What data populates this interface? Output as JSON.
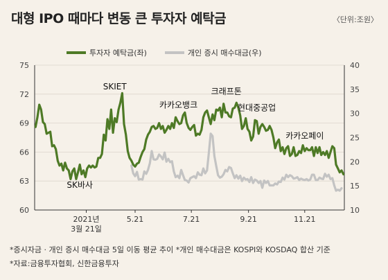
{
  "title": "대형 IPO 때마다 변동 큰 투자자 예탁금",
  "unit": "〈단위:조원〉",
  "footnotes": [
    "*증시자금 · 개인 증시 매수대금 5일 이동 평균 추이 *개인 매수대금은 KOSPI와 KOSDAQ 합산 기준",
    "*자료:금융투자협회, 신한금융투자"
  ],
  "colors": {
    "background": "#f6f1e9",
    "deposit": "#4e7a26",
    "buying": "#c3c3c3",
    "axis": "#333333",
    "grid": "#dcd6cc"
  },
  "chart_data": {
    "type": "line",
    "x_tick_labels": [
      {
        "x": 10,
        "lines": [
          "2021년",
          "3월 21일"
        ]
      },
      {
        "x": 63,
        "lines": [
          "5.21"
        ]
      },
      {
        "x": 124,
        "lines": [
          "7.21"
        ]
      },
      {
        "x": 186,
        "lines": [
          "9.21"
        ]
      },
      {
        "x": 247,
        "lines": [
          "11.21"
        ]
      }
    ],
    "xlim": [
      -46,
      290
    ],
    "y_left": {
      "ylim": [
        60,
        75
      ],
      "ticks": [
        60,
        63,
        66,
        69,
        72,
        75
      ]
    },
    "y_right": {
      "ylim": [
        10,
        40
      ],
      "ticks": [
        10,
        15,
        20,
        25,
        30,
        35,
        40
      ]
    },
    "series": [
      {
        "name": "투자자 예탁금(좌)",
        "axis": "left",
        "points": [
          [
            -45,
            68.6
          ],
          [
            -43,
            69.6
          ],
          [
            -41,
            70.9
          ],
          [
            -39,
            70.4
          ],
          [
            -37,
            69.1
          ],
          [
            -35,
            68.9
          ],
          [
            -33,
            67.9
          ],
          [
            -31,
            68.0
          ],
          [
            -29,
            68.1
          ],
          [
            -27,
            66.6
          ],
          [
            -25,
            66.7
          ],
          [
            -23,
            66.3
          ],
          [
            -21,
            65.1
          ],
          [
            -19,
            64.6
          ],
          [
            -17,
            64.8
          ],
          [
            -15,
            64.1
          ],
          [
            -13,
            64.9
          ],
          [
            -11,
            64.3
          ],
          [
            -9,
            64.1
          ],
          [
            -7,
            63.2
          ],
          [
            -5,
            64.0
          ],
          [
            -3,
            64.3
          ],
          [
            -1,
            63.2
          ],
          [
            1,
            63.9
          ],
          [
            3,
            64.7
          ],
          [
            5,
            63.7
          ],
          [
            7,
            64.1
          ],
          [
            9,
            63.4
          ],
          [
            11,
            64.3
          ],
          [
            13,
            64.6
          ],
          [
            15,
            64.4
          ],
          [
            17,
            64.6
          ],
          [
            19,
            64.4
          ],
          [
            21,
            64.5
          ],
          [
            23,
            65.4
          ],
          [
            25,
            65.4
          ],
          [
            27,
            65.8
          ],
          [
            29,
            67.8
          ],
          [
            31,
            67.2
          ],
          [
            33,
            69.4
          ],
          [
            35,
            68.4
          ],
          [
            37,
            70.4
          ],
          [
            39,
            68.0
          ],
          [
            41,
            69.5
          ],
          [
            43,
            69.1
          ],
          [
            45,
            70.4
          ],
          [
            47,
            71.1
          ],
          [
            49,
            72.1
          ],
          [
            51,
            68.9
          ],
          [
            53,
            67.8
          ],
          [
            55,
            66.1
          ],
          [
            57,
            65.4
          ],
          [
            59,
            65.1
          ],
          [
            61,
            64.7
          ],
          [
            63,
            64.5
          ],
          [
            65,
            64.8
          ],
          [
            67,
            64.9
          ],
          [
            69,
            65.5
          ],
          [
            71,
            66.0
          ],
          [
            73,
            66.3
          ],
          [
            75,
            67.3
          ],
          [
            77,
            67.8
          ],
          [
            79,
            68.1
          ],
          [
            81,
            68.6
          ],
          [
            83,
            68.7
          ],
          [
            85,
            68.4
          ],
          [
            87,
            68.5
          ],
          [
            89,
            69.0
          ],
          [
            91,
            68.4
          ],
          [
            93,
            68.7
          ],
          [
            95,
            68.0
          ],
          [
            97,
            68.3
          ],
          [
            99,
            68.7
          ],
          [
            101,
            68.4
          ],
          [
            103,
            69.0
          ],
          [
            105,
            68.5
          ],
          [
            107,
            69.6
          ],
          [
            109,
            69.2
          ],
          [
            111,
            68.9
          ],
          [
            113,
            69.0
          ],
          [
            115,
            69.8
          ],
          [
            117,
            70.1
          ],
          [
            119,
            69.0
          ],
          [
            121,
            68.5
          ],
          [
            123,
            68.3
          ],
          [
            125,
            68.6
          ],
          [
            127,
            68.8
          ],
          [
            129,
            67.7
          ],
          [
            131,
            67.9
          ],
          [
            133,
            67.8
          ],
          [
            135,
            68.3
          ],
          [
            137,
            69.6
          ],
          [
            139,
            70.1
          ],
          [
            141,
            70.3
          ],
          [
            143,
            69.6
          ],
          [
            145,
            68.9
          ],
          [
            147,
            69.9
          ],
          [
            149,
            69.3
          ],
          [
            151,
            70.4
          ],
          [
            153,
            70.3
          ],
          [
            155,
            70.6
          ],
          [
            157,
            69.6
          ],
          [
            159,
            71.0
          ],
          [
            161,
            70.1
          ],
          [
            163,
            70.1
          ],
          [
            165,
            69.7
          ],
          [
            167,
            69.6
          ],
          [
            169,
            70.5
          ],
          [
            171,
            70.6
          ],
          [
            173,
            71.1
          ],
          [
            175,
            70.6
          ],
          [
            177,
            69.8
          ],
          [
            179,
            68.4
          ],
          [
            181,
            68.7
          ],
          [
            183,
            69.5
          ],
          [
            185,
            68.4
          ],
          [
            187,
            68.1
          ],
          [
            189,
            67.2
          ],
          [
            191,
            67.6
          ],
          [
            193,
            69.3
          ],
          [
            195,
            69.2
          ],
          [
            197,
            67.9
          ],
          [
            199,
            68.6
          ],
          [
            201,
            68.9
          ],
          [
            203,
            68.6
          ],
          [
            205,
            68.2
          ],
          [
            207,
            68.3
          ],
          [
            209,
            68.7
          ],
          [
            211,
            68.3
          ],
          [
            213,
            67.5
          ],
          [
            215,
            66.4
          ],
          [
            217,
            67.0
          ],
          [
            219,
            67.3
          ],
          [
            221,
            66.1
          ],
          [
            223,
            66.5
          ],
          [
            225,
            65.8
          ],
          [
            227,
            66.4
          ],
          [
            229,
            66.6
          ],
          [
            231,
            65.6
          ],
          [
            233,
            65.8
          ],
          [
            235,
            66.5
          ],
          [
            237,
            65.6
          ],
          [
            239,
            65.7
          ],
          [
            241,
            66.1
          ],
          [
            243,
            65.9
          ],
          [
            245,
            66.7
          ],
          [
            247,
            66.1
          ],
          [
            249,
            66.4
          ],
          [
            251,
            66.2
          ],
          [
            253,
            66.2
          ],
          [
            255,
            66.5
          ],
          [
            257,
            65.6
          ],
          [
            259,
            66.5
          ],
          [
            261,
            65.9
          ],
          [
            263,
            66.5
          ],
          [
            265,
            65.7
          ],
          [
            267,
            66.0
          ],
          [
            269,
            65.7
          ],
          [
            271,
            66.1
          ],
          [
            273,
            65.4
          ],
          [
            275,
            66.0
          ],
          [
            277,
            66.6
          ],
          [
            279,
            66.4
          ],
          [
            281,
            64.7
          ],
          [
            283,
            64.3
          ],
          [
            285,
            63.9
          ],
          [
            287,
            64.1
          ],
          [
            289,
            63.7
          ]
        ]
      },
      {
        "name": "개인 증시 매수대금(우)",
        "axis": "right",
        "points": [
          [
            59,
            19.2
          ],
          [
            61,
            17.6
          ],
          [
            63,
            17.0
          ],
          [
            65,
            17.9
          ],
          [
            67,
            16.3
          ],
          [
            69,
            16.4
          ],
          [
            71,
            16.3
          ],
          [
            73,
            18.0
          ],
          [
            75,
            17.5
          ],
          [
            77,
            18.3
          ],
          [
            79,
            19.7
          ],
          [
            81,
            22.2
          ],
          [
            83,
            20.5
          ],
          [
            85,
            20.4
          ],
          [
            87,
            20.6
          ],
          [
            89,
            21.5
          ],
          [
            91,
            21.1
          ],
          [
            93,
            20.5
          ],
          [
            95,
            21.9
          ],
          [
            97,
            20.0
          ],
          [
            99,
            20.6
          ],
          [
            101,
            19.9
          ],
          [
            103,
            20.1
          ],
          [
            105,
            18.0
          ],
          [
            107,
            16.8
          ],
          [
            109,
            17.1
          ],
          [
            111,
            16.6
          ],
          [
            113,
            18.3
          ],
          [
            115,
            17.2
          ],
          [
            117,
            16.2
          ],
          [
            119,
            16.1
          ],
          [
            121,
            15.7
          ],
          [
            123,
            16.6
          ],
          [
            125,
            16.8
          ],
          [
            127,
            17.0
          ],
          [
            129,
            16.6
          ],
          [
            131,
            17.8
          ],
          [
            133,
            17.3
          ],
          [
            135,
            17.2
          ],
          [
            137,
            18.6
          ],
          [
            139,
            17.6
          ],
          [
            141,
            18.2
          ],
          [
            143,
            21.8
          ],
          [
            145,
            25.8
          ],
          [
            147,
            25.3
          ],
          [
            149,
            21.2
          ],
          [
            151,
            19.1
          ],
          [
            153,
            17.2
          ],
          [
            155,
            16.7
          ],
          [
            157,
            16.9
          ],
          [
            159,
            17.4
          ],
          [
            161,
            18.3
          ],
          [
            163,
            18.0
          ],
          [
            165,
            18.9
          ],
          [
            167,
            18.7
          ],
          [
            169,
            17.6
          ],
          [
            171,
            16.6
          ],
          [
            173,
            17.2
          ],
          [
            175,
            16.5
          ],
          [
            177,
            17.1
          ],
          [
            179,
            16.0
          ],
          [
            181,
            16.7
          ],
          [
            183,
            16.3
          ],
          [
            185,
            16.4
          ],
          [
            187,
            15.8
          ],
          [
            189,
            16.8
          ],
          [
            191,
            15.6
          ],
          [
            193,
            16.3
          ],
          [
            195,
            16.1
          ],
          [
            197,
            15.6
          ],
          [
            199,
            16.0
          ],
          [
            201,
            14.6
          ],
          [
            203,
            16.1
          ],
          [
            205,
            15.6
          ],
          [
            207,
            16.0
          ],
          [
            209,
            15.1
          ],
          [
            211,
            15.1
          ],
          [
            213,
            15.1
          ],
          [
            215,
            15.5
          ],
          [
            217,
            15.3
          ],
          [
            219,
            15.9
          ],
          [
            221,
            15.8
          ],
          [
            223,
            16.7
          ],
          [
            225,
            16.3
          ],
          [
            227,
            17.3
          ],
          [
            229,
            16.8
          ],
          [
            231,
            17.2
          ],
          [
            233,
            17.0
          ],
          [
            235,
            16.5
          ],
          [
            237,
            16.6
          ],
          [
            239,
            16.8
          ],
          [
            241,
            16.2
          ],
          [
            243,
            16.5
          ],
          [
            245,
            16.3
          ],
          [
            247,
            16.2
          ],
          [
            249,
            16.4
          ],
          [
            251,
            16.1
          ],
          [
            253,
            16.3
          ],
          [
            255,
            17.3
          ],
          [
            257,
            17.3
          ],
          [
            259,
            16.2
          ],
          [
            261,
            16.2
          ],
          [
            263,
            16.7
          ],
          [
            265,
            16.5
          ],
          [
            267,
            16.4
          ],
          [
            269,
            17.5
          ],
          [
            271,
            16.9
          ],
          [
            273,
            17.3
          ],
          [
            275,
            16.4
          ],
          [
            277,
            16.6
          ],
          [
            279,
            15.1
          ],
          [
            281,
            14.0
          ],
          [
            283,
            14.2
          ],
          [
            285,
            14.0
          ],
          [
            287,
            14.5
          ]
        ]
      }
    ],
    "annotations": [
      {
        "text": "SK바사",
        "x": 3,
        "y": 62.3
      },
      {
        "text": "SKIET",
        "x": 41,
        "y": 72.5
      },
      {
        "text": "카카오뱅크",
        "x": 110,
        "y": 70.6
      },
      {
        "text": "크래프톤",
        "x": 162,
        "y": 72.0
      },
      {
        "text": "현대중공업",
        "x": 195,
        "y": 70.3
      },
      {
        "text": "카카오페이",
        "x": 247,
        "y": 67.4
      }
    ],
    "grid": true,
    "legend_position": "top-left"
  }
}
